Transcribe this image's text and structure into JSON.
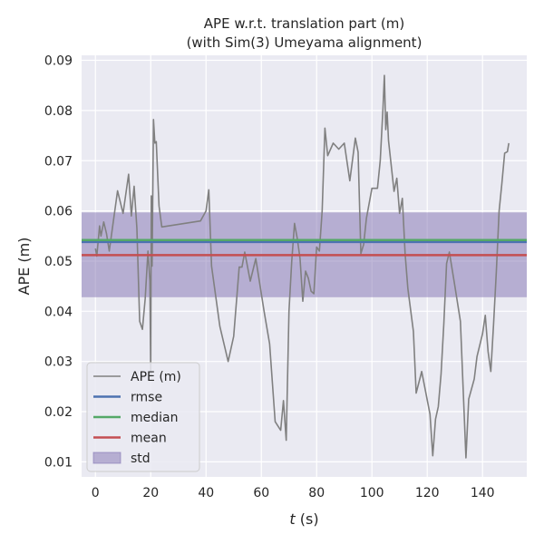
{
  "chart_data": {
    "type": "line",
    "title": [
      "APE w.r.t. translation part (m)",
      "(with Sim(3) Umeyama alignment)"
    ],
    "xlabel_var": "t",
    "xlabel_unit": " (s)",
    "ylabel": "APE (m)",
    "xlim": [
      -5,
      156
    ],
    "ylim": [
      0.007,
      0.091
    ],
    "xticks": [
      0,
      20,
      40,
      60,
      80,
      100,
      120,
      140
    ],
    "yticks": [
      0.01,
      0.02,
      0.03,
      0.04,
      0.05,
      0.06,
      0.07,
      0.08,
      0.09
    ],
    "ytick_labels": [
      "0.01",
      "0.02",
      "0.03",
      "0.04",
      "0.05",
      "0.06",
      "0.07",
      "0.08",
      "0.09"
    ],
    "grid": true,
    "legend_position": "lower-left",
    "series": [
      {
        "name": "APE (m)",
        "color": "#808080",
        "x": [
          0,
          0.5,
          1.5,
          2,
          3,
          4,
          5,
          6,
          8,
          10,
          12,
          13,
          14,
          15,
          16,
          17,
          18,
          19,
          19.7,
          20,
          20.2,
          20.5,
          21,
          21.5,
          22,
          23,
          24,
          38,
          40,
          41,
          42,
          43,
          45,
          48,
          50,
          52,
          53,
          54,
          56,
          58,
          61,
          63,
          65,
          67,
          68,
          69,
          70,
          71,
          72,
          73,
          74,
          75,
          76,
          77,
          78,
          79,
          80,
          81,
          82,
          83,
          84,
          86,
          88,
          90,
          92,
          94,
          95,
          96,
          97,
          98,
          100,
          101,
          102,
          103,
          104,
          104.5,
          105,
          105.5,
          106,
          108,
          109,
          110,
          111,
          112,
          113,
          115,
          116,
          118,
          121,
          122,
          123,
          124,
          125,
          126,
          127,
          128,
          130,
          132,
          134,
          135,
          137,
          138,
          140,
          141,
          142,
          143,
          144,
          145,
          146,
          147,
          148,
          149,
          149.5
        ],
        "values": [
          0.0525,
          0.051,
          0.057,
          0.055,
          0.0578,
          0.0555,
          0.052,
          0.056,
          0.064,
          0.0595,
          0.0673,
          0.059,
          0.0649,
          0.0565,
          0.038,
          0.0364,
          0.0425,
          0.052,
          0.046,
          0.027,
          0.063,
          0.049,
          0.0782,
          0.0735,
          0.0738,
          0.061,
          0.0568,
          0.058,
          0.06,
          0.0642,
          0.049,
          0.045,
          0.037,
          0.03,
          0.035,
          0.0488,
          0.0488,
          0.0518,
          0.046,
          0.0505,
          0.04,
          0.0335,
          0.018,
          0.0163,
          0.0222,
          0.0143,
          0.04,
          0.05,
          0.0575,
          0.0545,
          0.0505,
          0.042,
          0.048,
          0.0466,
          0.044,
          0.0435,
          0.0528,
          0.052,
          0.06,
          0.0765,
          0.071,
          0.0735,
          0.0723,
          0.0735,
          0.066,
          0.0745,
          0.0717,
          0.0515,
          0.0533,
          0.0585,
          0.0645,
          0.0645,
          0.0645,
          0.07,
          0.0805,
          0.087,
          0.0762,
          0.0797,
          0.074,
          0.0639,
          0.0665,
          0.0595,
          0.0625,
          0.0515,
          0.0445,
          0.036,
          0.0237,
          0.028,
          0.0195,
          0.0112,
          0.0185,
          0.021,
          0.0275,
          0.0375,
          0.0495,
          0.0518,
          0.045,
          0.038,
          0.0108,
          0.0225,
          0.0265,
          0.031,
          0.0355,
          0.0392,
          0.032,
          0.028,
          0.0375,
          0.048,
          0.06,
          0.0655,
          0.0715,
          0.0718,
          0.0735
        ]
      },
      {
        "name": "rmse",
        "color": "#4c72b0",
        "value": 0.0538
      },
      {
        "name": "median",
        "color": "#55a868",
        "value": 0.0542
      },
      {
        "name": "mean",
        "color": "#c44e52",
        "value": 0.0512
      },
      {
        "name": "std",
        "color": "#8172b2",
        "range": [
          0.0428,
          0.0597
        ]
      }
    ]
  }
}
